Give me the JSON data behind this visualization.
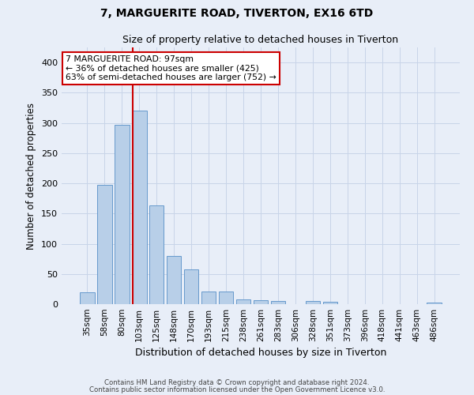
{
  "title": "7, MARGUERITE ROAD, TIVERTON, EX16 6TD",
  "subtitle": "Size of property relative to detached houses in Tiverton",
  "xlabel": "Distribution of detached houses by size in Tiverton",
  "ylabel": "Number of detached properties",
  "footnote1": "Contains HM Land Registry data © Crown copyright and database right 2024.",
  "footnote2": "Contains public sector information licensed under the Open Government Licence v3.0.",
  "bar_labels": [
    "35sqm",
    "58sqm",
    "80sqm",
    "103sqm",
    "125sqm",
    "148sqm",
    "170sqm",
    "193sqm",
    "215sqm",
    "238sqm",
    "261sqm",
    "283sqm",
    "306sqm",
    "328sqm",
    "351sqm",
    "373sqm",
    "396sqm",
    "418sqm",
    "441sqm",
    "463sqm",
    "486sqm"
  ],
  "bar_values": [
    20,
    197,
    297,
    320,
    163,
    80,
    57,
    21,
    21,
    8,
    6,
    5,
    0,
    5,
    4,
    0,
    0,
    0,
    0,
    0,
    3
  ],
  "bar_color": "#b8cfe8",
  "bar_edge_color": "#6699cc",
  "grid_color": "#c8d4e8",
  "bg_color": "#e8eef8",
  "vline_x_idx": 2.62,
  "vline_color": "#cc0000",
  "annotation_line1": "7 MARGUERITE ROAD: 97sqm",
  "annotation_line2": "← 36% of detached houses are smaller (425)",
  "annotation_line3": "63% of semi-detached houses are larger (752) →",
  "annotation_box_color": "#ffffff",
  "annotation_box_edge": "#cc0000",
  "ylim": [
    0,
    425
  ],
  "yticks": [
    0,
    50,
    100,
    150,
    200,
    250,
    300,
    350,
    400
  ],
  "title_fontsize": 10,
  "subtitle_fontsize": 9
}
